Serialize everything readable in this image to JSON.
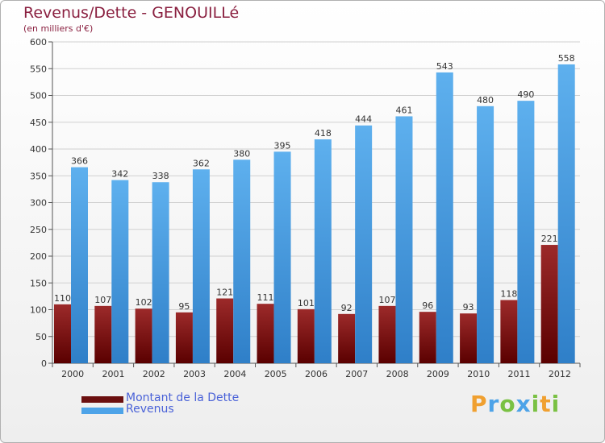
{
  "chart_data": {
    "type": "bar",
    "title": "Revenus/Dette - GENOUILLé",
    "subtitle": "(en milliers d'€)",
    "categories": [
      "2000",
      "2001",
      "2002",
      "2003",
      "2004",
      "2005",
      "2006",
      "2007",
      "2008",
      "2009",
      "2010",
      "2011",
      "2012"
    ],
    "series": [
      {
        "name": "Montant de la Dette",
        "color": "#8b1a1a",
        "values": [
          110,
          107,
          102,
          95,
          121,
          111,
          101,
          92,
          107,
          96,
          93,
          118,
          221
        ]
      },
      {
        "name": "Revenus",
        "color": "#4da3e8",
        "values": [
          366,
          342,
          338,
          362,
          380,
          395,
          418,
          444,
          461,
          543,
          480,
          490,
          558
        ]
      }
    ],
    "ylim": [
      0,
      600
    ],
    "yticks": [
      0,
      50,
      100,
      150,
      200,
      250,
      300,
      350,
      400,
      450,
      500,
      550,
      600
    ],
    "grid": true,
    "legend": "bottom-left"
  },
  "legend": [
    {
      "label": "Montant de la Dette",
      "color": "#6b0f0f"
    },
    {
      "label": "Revenus",
      "color": "#4da3e8"
    }
  ],
  "brand": {
    "letters": [
      "P",
      "r",
      "o",
      "x",
      "i",
      "t",
      "i"
    ],
    "colors": [
      "#f0a030",
      "#4da3e8",
      "#7ac143",
      "#4da3e8",
      "#7ac143",
      "#f0a030",
      "#7ac143"
    ]
  }
}
